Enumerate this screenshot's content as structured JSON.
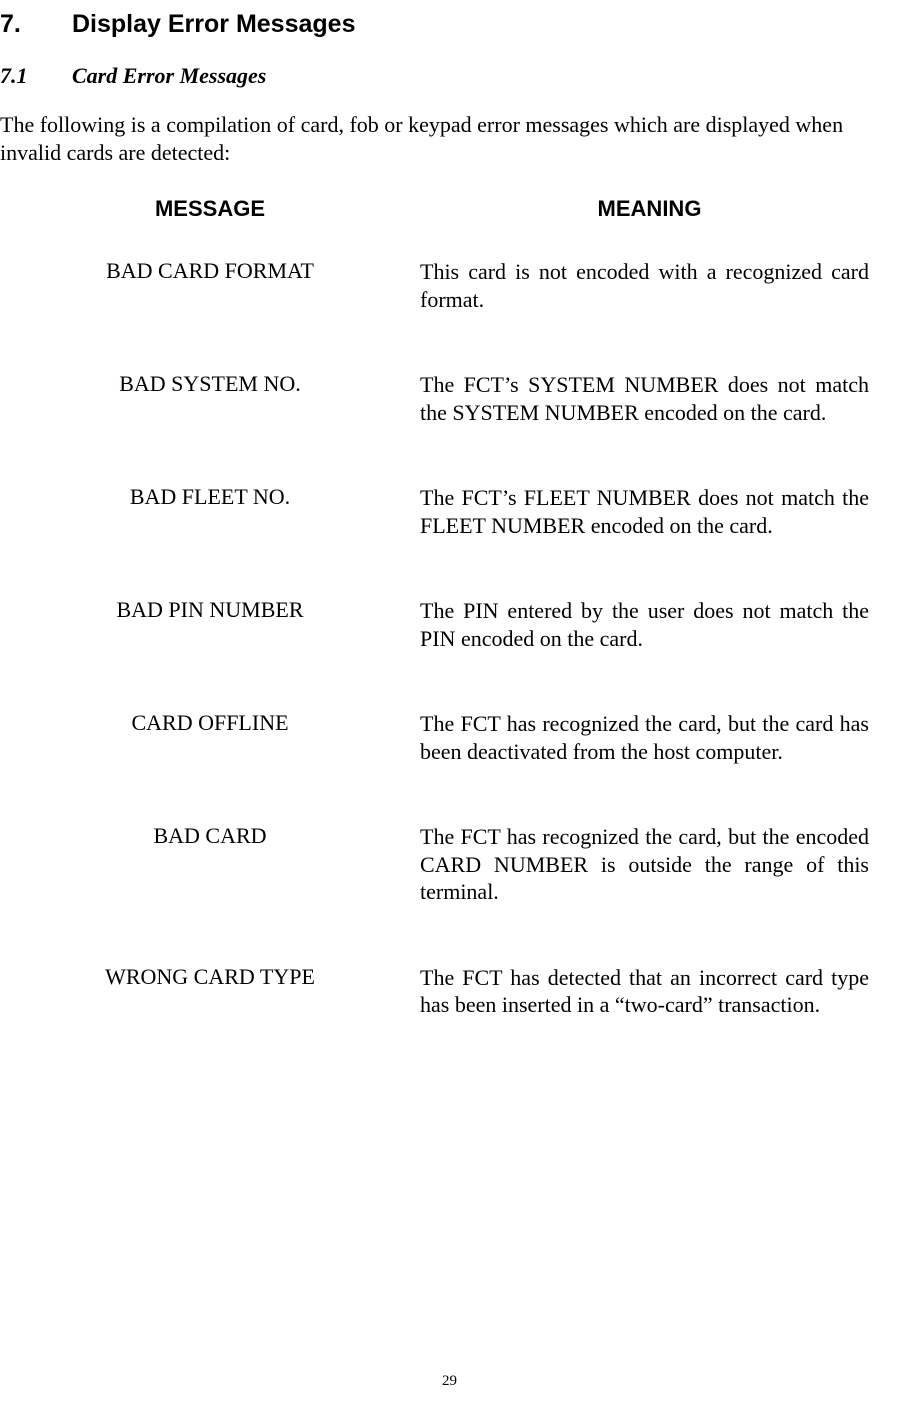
{
  "section": {
    "number": "7.",
    "title": "Display Error Messages"
  },
  "subsection": {
    "number": "7.1",
    "title": "Card Error Messages"
  },
  "intro": "The following is a compilation of card, fob or keypad error messages which are displayed when invalid cards are detected:",
  "headers": {
    "message": "MESSAGE",
    "meaning": "MEANING"
  },
  "rows": [
    {
      "message": "BAD CARD FORMAT",
      "meaning": "This card is not encoded with a recognized card format."
    },
    {
      "message": "BAD SYSTEM NO.",
      "meaning": "The FCT’s SYSTEM NUMBER does not match the SYSTEM NUMBER encoded on the card."
    },
    {
      "message": "BAD FLEET NO.",
      "meaning": "The FCT’s FLEET NUMBER does not match the FLEET NUMBER encoded on the card."
    },
    {
      "message": "BAD PIN NUMBER",
      "meaning": "The PIN entered by the user does not match the PIN encoded on the card."
    },
    {
      "message": "CARD OFFLINE",
      "meaning": "The FCT has recognized the card, but the card has been deactivated from the host computer."
    },
    {
      "message": "BAD CARD",
      "meaning": "The FCT has recognized the card, but the encoded CARD NUMBER is outside the range of this terminal."
    },
    {
      "message": "WRONG CARD TYPE",
      "meaning": "The FCT has detected that an incorrect card type has been inserted in a “two-card” transaction."
    }
  ],
  "pageNumber": "29"
}
